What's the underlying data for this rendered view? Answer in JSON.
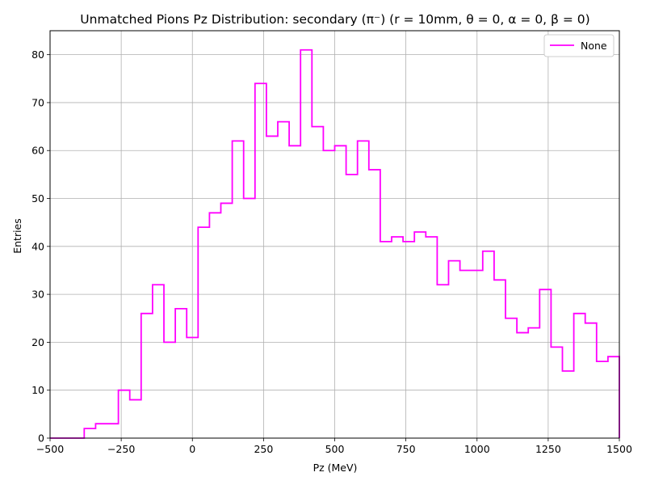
{
  "chart_data": {
    "type": "histogram",
    "title": "Unmatched Pions Pz Distribution: secondary (π⁻) (r = 10mm, θ = 0, α = 0, β = 0)",
    "xlabel": "Pz (MeV)",
    "ylabel": "Entries",
    "xlim": [
      -500,
      1500
    ],
    "ylim": [
      0,
      85
    ],
    "xticks": [
      -500,
      -250,
      0,
      250,
      500,
      750,
      1000,
      1250,
      1500
    ],
    "xtick_labels": [
      "−500",
      "−250",
      "0",
      "250",
      "500",
      "750",
      "1000",
      "1250",
      "1500"
    ],
    "yticks": [
      0,
      10,
      20,
      30,
      40,
      50,
      60,
      70,
      80
    ],
    "ytick_labels": [
      "0",
      "10",
      "20",
      "30",
      "40",
      "50",
      "60",
      "70",
      "80"
    ],
    "grid": true,
    "legend": {
      "position": "top-right",
      "entries": [
        "None"
      ]
    },
    "series": [
      {
        "name": "None",
        "color": "#ff00ff",
        "style": "step",
        "bin_edges": [
          -500,
          -460,
          -420,
          -380,
          -340,
          -300,
          -260,
          -220,
          -180,
          -140,
          -100,
          -60,
          -20,
          20,
          60,
          100,
          140,
          180,
          220,
          260,
          300,
          340,
          380,
          420,
          460,
          500,
          540,
          580,
          620,
          660,
          700,
          740,
          780,
          820,
          860,
          900,
          940,
          980,
          1020,
          1060,
          1100,
          1140,
          1180,
          1220,
          1260,
          1300,
          1340,
          1380,
          1420,
          1460,
          1500
        ],
        "counts": [
          0,
          0,
          0,
          2,
          3,
          3,
          10,
          8,
          26,
          32,
          20,
          27,
          21,
          44,
          47,
          49,
          62,
          50,
          74,
          63,
          66,
          61,
          81,
          65,
          60,
          61,
          55,
          62,
          56,
          41,
          42,
          41,
          43,
          42,
          32,
          37,
          35,
          35,
          39,
          33,
          25,
          22,
          23,
          31,
          19,
          14,
          26,
          24,
          16,
          17
        ]
      }
    ]
  }
}
